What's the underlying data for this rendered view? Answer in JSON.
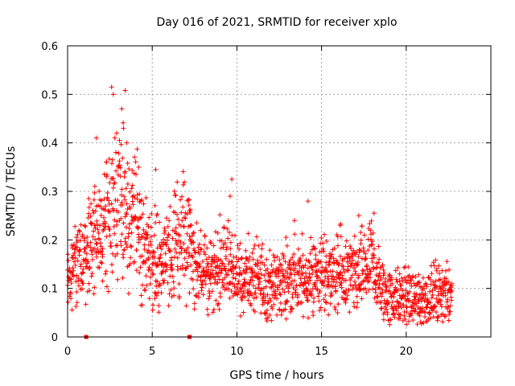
{
  "chart_data": {
    "type": "scatter",
    "title": "Day 016 of 2021, SRMTID for receiver xplo",
    "xlabel": "GPS time / hours",
    "ylabel": "SRMTID / TECUs",
    "xlim": [
      0,
      25
    ],
    "ylim": [
      0,
      0.6
    ],
    "xticks": [
      0,
      5,
      10,
      15,
      20
    ],
    "xtick_labels": [
      "0",
      "5",
      "10",
      "15",
      "20"
    ],
    "yticks": [
      0,
      0.1,
      0.2,
      0.3,
      0.4,
      0.5,
      0.6
    ],
    "ytick_labels": [
      "0",
      "0.1",
      "0.2",
      "0.3",
      "0.4",
      "0.5",
      "0.6"
    ],
    "grid": true,
    "marker": "+",
    "color": "#ff0000",
    "series": [
      {
        "name": "SRMTID",
        "envelope_x": [
          0,
          0.5,
          1,
          1.5,
          2,
          2.5,
          2.8,
          3,
          3.5,
          4,
          4.5,
          5,
          5.5,
          6,
          6.5,
          7,
          7.5,
          8,
          9,
          9.5,
          10,
          11,
          12,
          13,
          14,
          15,
          16,
          17,
          17.5,
          18,
          18.5,
          19,
          20,
          21,
          22,
          22.7
        ],
        "envelope_y": [
          0.12,
          0.14,
          0.17,
          0.2,
          0.22,
          0.26,
          0.3,
          0.28,
          0.27,
          0.25,
          0.17,
          0.18,
          0.14,
          0.17,
          0.2,
          0.2,
          0.16,
          0.13,
          0.14,
          0.15,
          0.13,
          0.12,
          0.1,
          0.12,
          0.12,
          0.13,
          0.13,
          0.12,
          0.14,
          0.15,
          0.1,
          0.08,
          0.08,
          0.08,
          0.09,
          0.1
        ],
        "peaks": [
          {
            "x": 2.6,
            "y": 0.515
          },
          {
            "x": 2.7,
            "y": 0.5
          },
          {
            "x": 3.4,
            "y": 0.508
          },
          {
            "x": 3.2,
            "y": 0.47
          },
          {
            "x": 3.3,
            "y": 0.43
          },
          {
            "x": 2.9,
            "y": 0.42
          },
          {
            "x": 3.5,
            "y": 0.4
          },
          {
            "x": 1.7,
            "y": 0.41
          },
          {
            "x": 2.3,
            "y": 0.36
          },
          {
            "x": 4.2,
            "y": 0.35
          },
          {
            "x": 5.2,
            "y": 0.345
          },
          {
            "x": 9.7,
            "y": 0.325
          },
          {
            "x": 9.6,
            "y": 0.29
          },
          {
            "x": 14.2,
            "y": 0.28
          },
          {
            "x": 18.1,
            "y": 0.255
          },
          {
            "x": 17.2,
            "y": 0.25
          },
          {
            "x": 16.1,
            "y": 0.23
          },
          {
            "x": 13.4,
            "y": 0.24
          },
          {
            "x": 7.2,
            "y": 0.26
          }
        ],
        "gap_markers_x": [
          1.1,
          7.2
        ]
      }
    ]
  }
}
